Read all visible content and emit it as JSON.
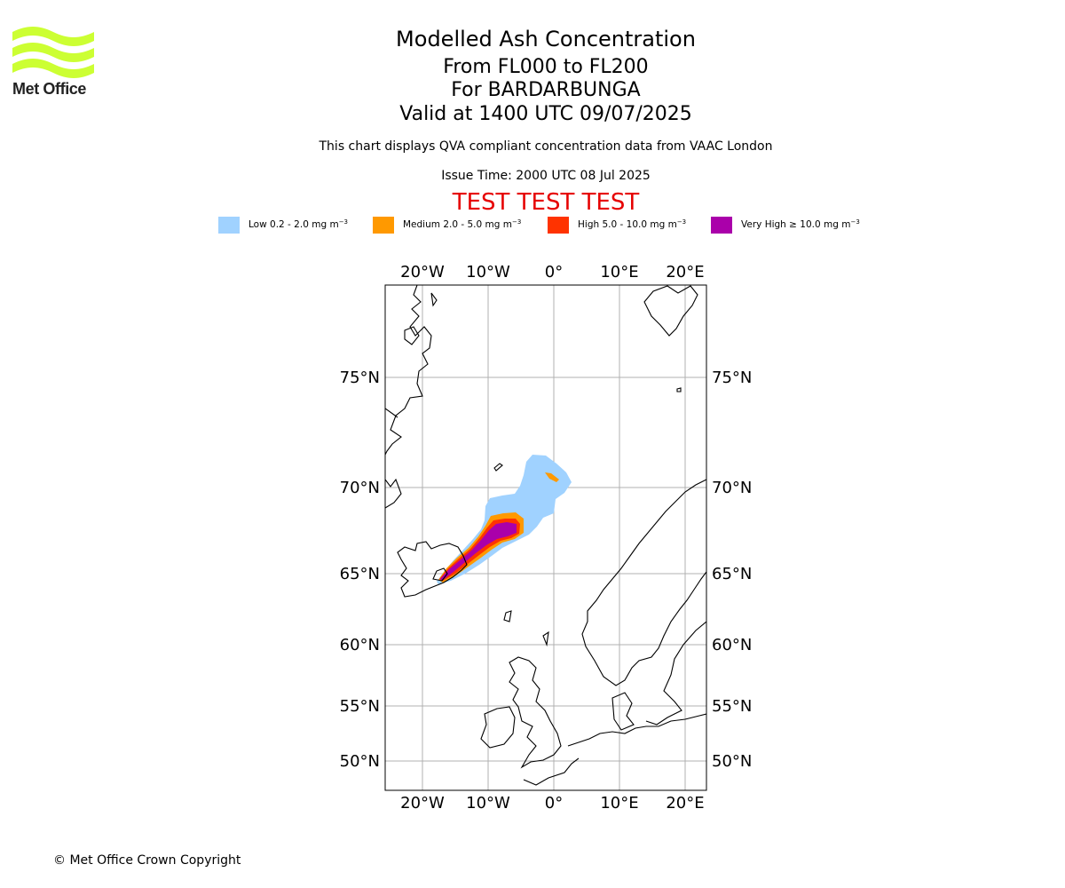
{
  "logo": {
    "text": "Met Office",
    "color": "#ccff33"
  },
  "title": {
    "main": "Modelled Ash Concentration",
    "levels": "From FL000 to FL200",
    "volcano": "For BARDARBUNGA",
    "valid": "Valid at 1400 UTC 09/07/2025"
  },
  "description": "This chart displays QVA compliant concentration data from VAAC London",
  "issue_time": "Issue Time: 2000 UTC 08 Jul 2025",
  "test_banner": "TEST TEST TEST",
  "legend": [
    {
      "label": "Low 0.2 - 2.0 mg m",
      "color": "#a0d2ff"
    },
    {
      "label": "Medium 2.0 - 5.0 mg m",
      "color": "#ff9900"
    },
    {
      "label": "High 5.0 - 10.0 mg m",
      "color": "#ff3300"
    },
    {
      "label": "Very High  ≥  10.0 mg m",
      "color": "#aa00aa"
    }
  ],
  "legend_exponent": "−3",
  "map": {
    "projection": "conic",
    "lon_range": [
      -26,
      23
    ],
    "lat_range": [
      48,
      79
    ],
    "lon_ticks": [
      {
        "value": -20,
        "label": "20°W"
      },
      {
        "value": -10,
        "label": "10°W"
      },
      {
        "value": 0,
        "label": "0°"
      },
      {
        "value": 10,
        "label": "10°E"
      },
      {
        "value": 20,
        "label": "20°E"
      }
    ],
    "lat_ticks": [
      {
        "value": 75,
        "label": "75°N"
      },
      {
        "value": 70,
        "label": "70°N"
      },
      {
        "value": 65,
        "label": "65°N"
      },
      {
        "value": 60,
        "label": "60°N"
      },
      {
        "value": 55,
        "label": "55°N"
      },
      {
        "value": 50,
        "label": "50°N"
      }
    ],
    "gridlines": true
  },
  "copyright": "© Met Office Crown Copyright"
}
